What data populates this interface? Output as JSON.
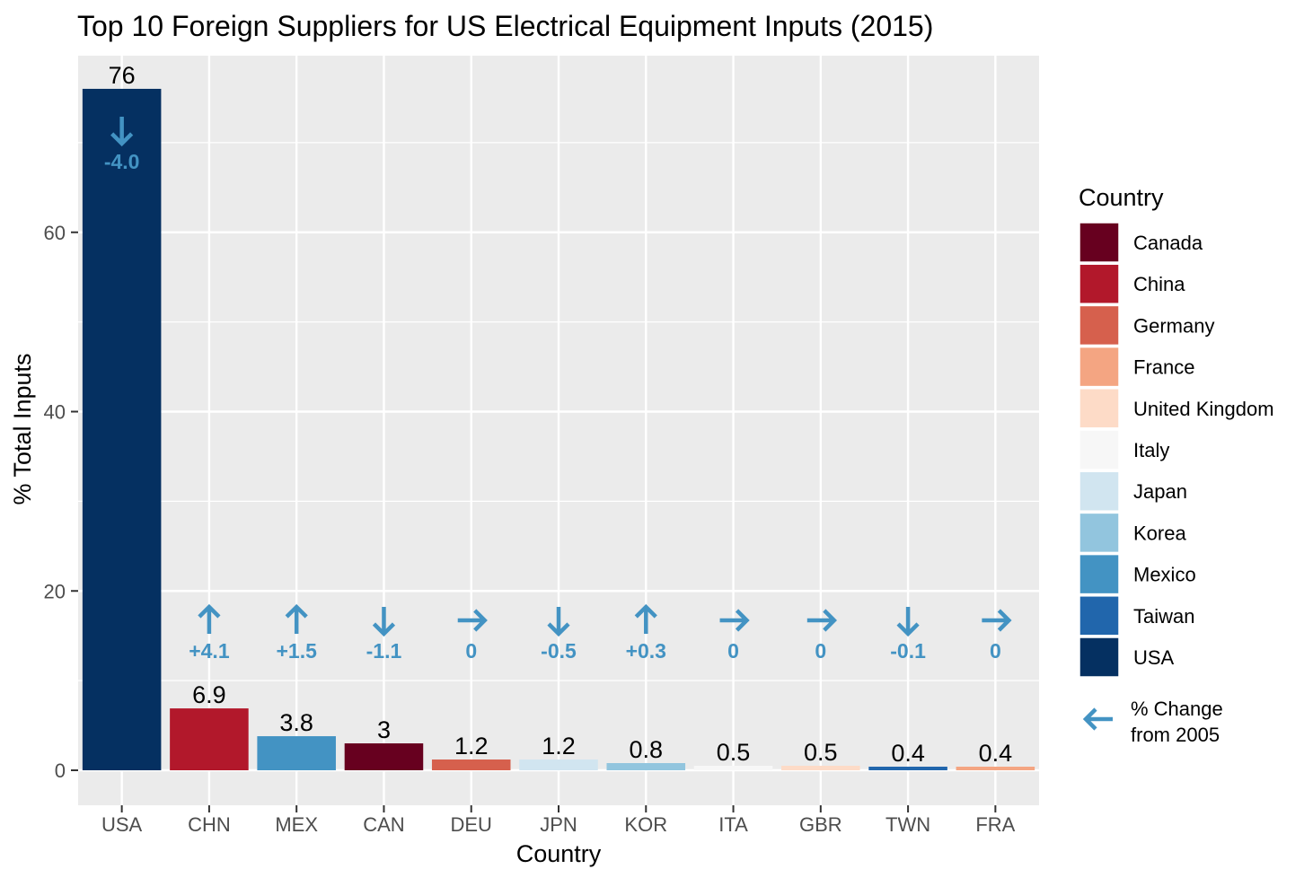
{
  "chart_data": {
    "type": "bar",
    "title": "Top 10 Foreign Suppliers for US Electrical Equipment Inputs (2015)",
    "xlabel": "Country",
    "ylabel": "% Total Inputs",
    "ylim": [
      0,
      78
    ],
    "yticks": [
      0,
      20,
      40,
      60
    ],
    "grid": true,
    "categories": [
      "USA",
      "CHN",
      "MEX",
      "CAN",
      "DEU",
      "JPN",
      "KOR",
      "ITA",
      "GBR",
      "TWN",
      "FRA"
    ],
    "values": [
      76,
      6.9,
      3.8,
      3,
      1.2,
      1.2,
      0.8,
      0.5,
      0.5,
      0.4,
      0.4
    ],
    "value_labels": [
      "76",
      "6.9",
      "3.8",
      "3",
      "1.2",
      "1.2",
      "0.8",
      "0.5",
      "0.5",
      "0.4",
      "0.4"
    ],
    "bar_country": [
      "USA",
      "China",
      "Mexico",
      "Canada",
      "Germany",
      "Japan",
      "Korea",
      "Italy",
      "United Kingdom",
      "Taiwan",
      "France"
    ],
    "change_from_2005": [
      {
        "label": "-4.0",
        "direction": "down"
      },
      {
        "label": "+4.1",
        "direction": "up"
      },
      {
        "label": "+1.5",
        "direction": "up"
      },
      {
        "label": "-1.1",
        "direction": "down"
      },
      {
        "label": "0",
        "direction": "right"
      },
      {
        "label": "-0.5",
        "direction": "down"
      },
      {
        "label": "+0.3",
        "direction": "up"
      },
      {
        "label": "0",
        "direction": "right"
      },
      {
        "label": "0",
        "direction": "right"
      },
      {
        "label": "-0.1",
        "direction": "down"
      },
      {
        "label": "0",
        "direction": "right"
      }
    ],
    "change_color": "#4393c3",
    "legend": {
      "title": "Country",
      "placement": "right",
      "items": [
        {
          "label": "Canada",
          "color": "#67001f"
        },
        {
          "label": "China",
          "color": "#b2182b"
        },
        {
          "label": "Germany",
          "color": "#d6604d"
        },
        {
          "label": "France",
          "color": "#f4a582"
        },
        {
          "label": "United Kingdom",
          "color": "#fddbc7"
        },
        {
          "label": "Italy",
          "color": "#f7f7f7"
        },
        {
          "label": "Japan",
          "color": "#d1e5f0"
        },
        {
          "label": "Korea",
          "color": "#92c5de"
        },
        {
          "label": "Mexico",
          "color": "#4393c3"
        },
        {
          "label": "Taiwan",
          "color": "#2166ac"
        },
        {
          "label": "USA",
          "color": "#053061"
        }
      ],
      "change_key": {
        "line1": "% Change",
        "line2": "from 2005",
        "direction": "left"
      }
    },
    "panel_color": "#ebebeb",
    "grid_color": "#ffffff"
  }
}
